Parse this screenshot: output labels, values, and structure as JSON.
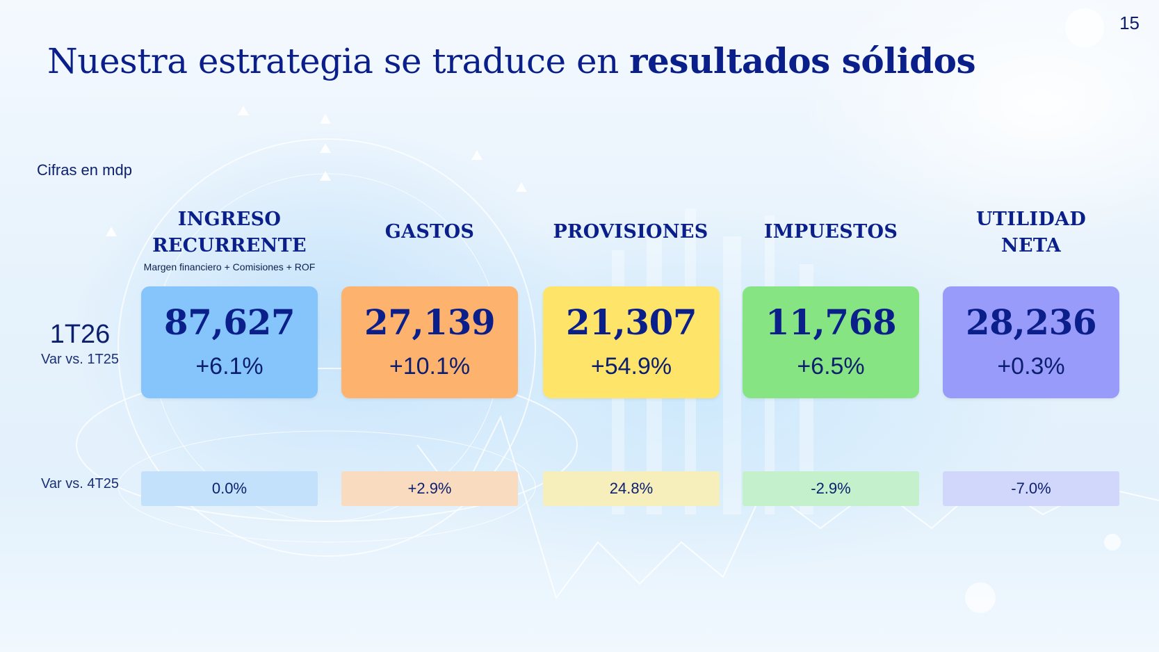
{
  "page_number": "15",
  "title": {
    "regular": "Nuestra estrategia se traduce en ",
    "bold": "resultados sólidos"
  },
  "units_note": "Cifras en mdp",
  "row_labels": {
    "period": "1T26",
    "var_yoy": "Var vs. 1T25",
    "var_qoq": "Var vs. 4T25"
  },
  "columns": [
    {
      "header_line1": "INGRESO",
      "header_line2": "RECURRENTE",
      "subtitle": "Margen financiero + Comisiones + ROF",
      "value": "87,627",
      "var_yoy": "+6.1%",
      "var_qoq": "0.0%",
      "card_color": "#86c5fb",
      "strip_color": "#c3e1fb"
    },
    {
      "header_line1": "GASTOS",
      "header_line2": "",
      "subtitle": "",
      "value": "27,139",
      "var_yoy": "+10.1%",
      "var_qoq": "+2.9%",
      "card_color": "#fdb26d",
      "strip_color": "#f9dcc0"
    },
    {
      "header_line1": "PROVISIONES",
      "header_line2": "",
      "subtitle": "",
      "value": "21,307",
      "var_yoy": "+54.9%",
      "var_qoq": "24.8%",
      "card_color": "#fee56a",
      "strip_color": "#f6efbc"
    },
    {
      "header_line1": "IMPUESTOS",
      "header_line2": "",
      "subtitle": "",
      "value": "11,768",
      "var_yoy": "+6.5%",
      "var_qoq": "-2.9%",
      "card_color": "#86e582",
      "strip_color": "#c4f0cb"
    },
    {
      "header_line1": "UTILIDAD",
      "header_line2": "NETA",
      "subtitle": "",
      "value": "28,236",
      "var_yoy": "+0.3%",
      "var_qoq": "-7.0%",
      "card_color": "#999bfb",
      "strip_color": "#d1d6fb"
    }
  ]
}
